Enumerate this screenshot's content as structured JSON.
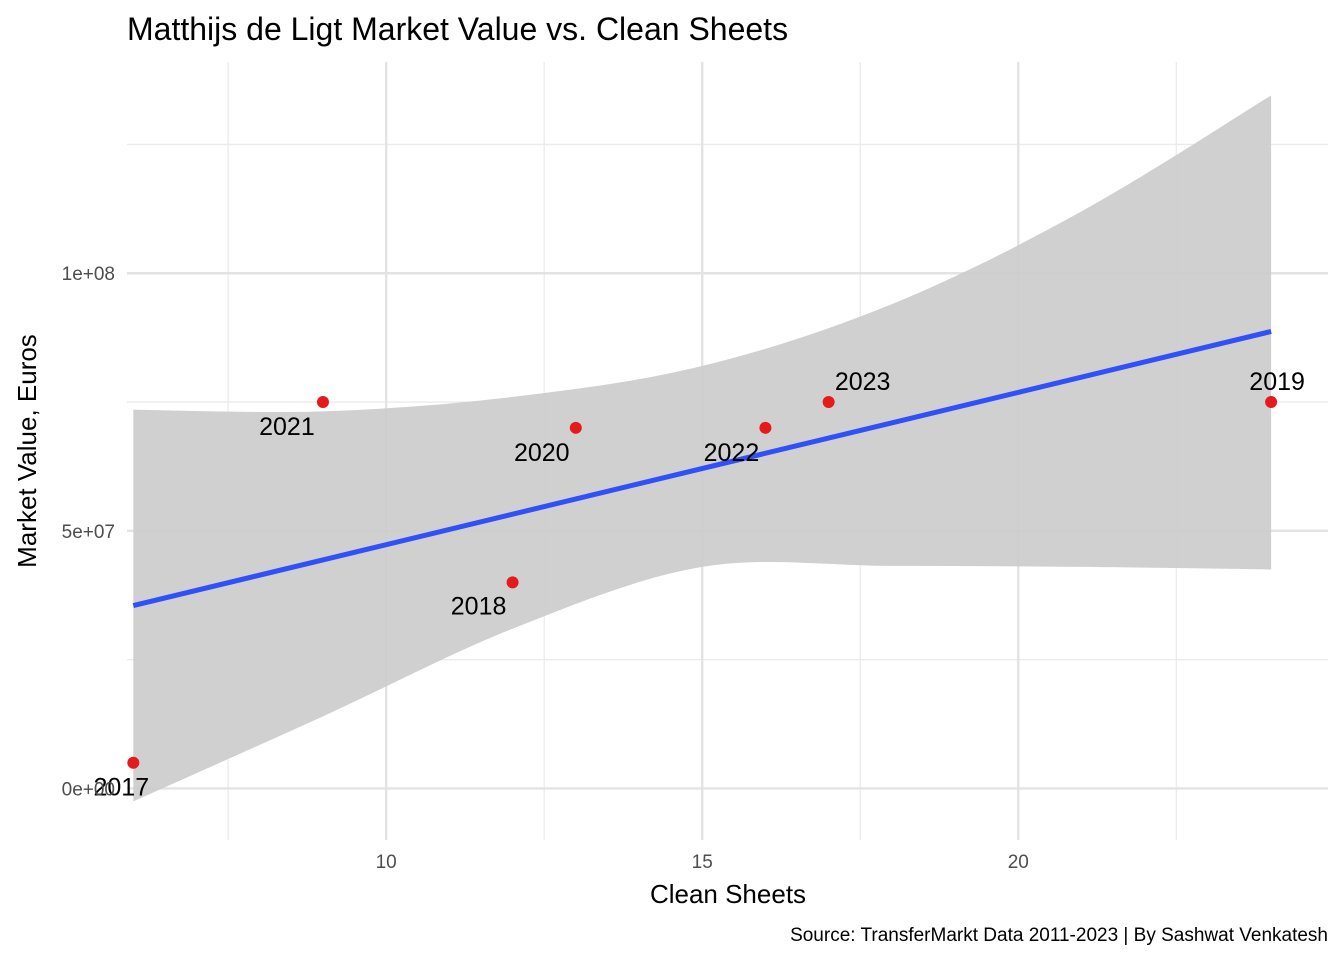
{
  "chart_data": {
    "type": "scatter",
    "title": "Matthijs de Ligt Market Value vs. Clean Sheets",
    "xlabel": "Clean Sheets",
    "ylabel": "Market Value, Euros",
    "caption": "Source: TransferMarkt Data 2011-2023 | By Sashwat Venkatesh",
    "xlim": [
      5.9,
      24.9
    ],
    "ylim": [
      -10000000,
      141000000
    ],
    "x_ticks": [
      10,
      15,
      20
    ],
    "x_tick_labels": [
      "10",
      "15",
      "20"
    ],
    "y_ticks": [
      0,
      50000000,
      100000000
    ],
    "y_tick_labels": [
      "0e+00",
      "5e+07",
      "1e+08"
    ],
    "grid": true,
    "point_color": "#e41a1c",
    "points": [
      {
        "label": "2017",
        "x": 6,
        "y": 5000000
      },
      {
        "label": "2021",
        "x": 9,
        "y": 75000000
      },
      {
        "label": "2018",
        "x": 12,
        "y": 40000000
      },
      {
        "label": "2020",
        "x": 13,
        "y": 70000000
      },
      {
        "label": "2022",
        "x": 16,
        "y": 70000000
      },
      {
        "label": "2023",
        "x": 17,
        "y": 75000000
      },
      {
        "label": "2019",
        "x": 24,
        "y": 75000000
      }
    ],
    "trend": {
      "method": "lm",
      "color": "#3050f8",
      "band_color": "#cccccc",
      "x_start": 6,
      "x_end": 24,
      "y_start": 35500000,
      "y_end": 88700000,
      "band_upper": [
        {
          "x": 6,
          "y": 73500000
        },
        {
          "x": 9,
          "y": 73200000
        },
        {
          "x": 12,
          "y": 76000000
        },
        {
          "x": 15,
          "y": 82000000
        },
        {
          "x": 18,
          "y": 94000000
        },
        {
          "x": 21,
          "y": 112000000
        },
        {
          "x": 24,
          "y": 134500000
        }
      ],
      "band_lower": [
        {
          "x": 6,
          "y": -2500000
        },
        {
          "x": 9,
          "y": 14000000
        },
        {
          "x": 12,
          "y": 31000000
        },
        {
          "x": 15,
          "y": 43000000
        },
        {
          "x": 18,
          "y": 43200000
        },
        {
          "x": 21,
          "y": 43000000
        },
        {
          "x": 24,
          "y": 42500000
        }
      ]
    }
  }
}
